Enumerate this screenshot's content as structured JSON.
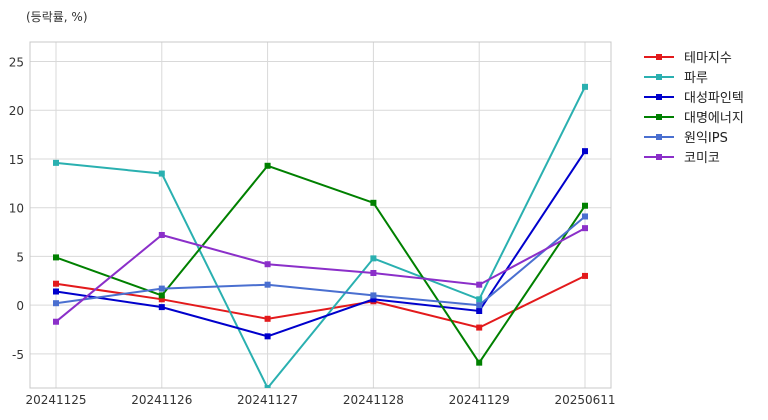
{
  "chart_data": {
    "type": "line",
    "unit_label": "(등락률, %)",
    "x": [
      "20241125",
      "20241126",
      "20241127",
      "20241128",
      "20241129",
      "20250611"
    ],
    "ylim": [
      -8.5,
      27
    ],
    "yticks": [
      -5,
      0,
      5,
      10,
      15,
      20,
      25
    ],
    "grid": true,
    "legend_position": "right-outside",
    "series": [
      {
        "name": "테마지수",
        "color": "#e31a1c",
        "values": [
          2.2,
          0.6,
          -1.4,
          0.4,
          -2.3,
          3.0
        ]
      },
      {
        "name": "파루",
        "color": "#2ab0b0",
        "values": [
          14.6,
          13.5,
          -8.5,
          4.8,
          0.6,
          22.4
        ]
      },
      {
        "name": "대성파인텍",
        "color": "#0000cc",
        "values": [
          1.4,
          -0.2,
          -3.2,
          0.6,
          -0.6,
          15.8
        ]
      },
      {
        "name": "대명에너지",
        "color": "#008000",
        "values": [
          4.9,
          1.0,
          14.3,
          10.5,
          -5.9,
          10.2
        ]
      },
      {
        "name": "원익IPS",
        "color": "#4a6fd0",
        "values": [
          0.2,
          1.7,
          2.1,
          1.0,
          0.0,
          9.1
        ]
      },
      {
        "name": "코미코",
        "color": "#8b2fc9",
        "values": [
          -1.7,
          7.2,
          4.2,
          3.3,
          2.1,
          7.9
        ]
      }
    ]
  }
}
